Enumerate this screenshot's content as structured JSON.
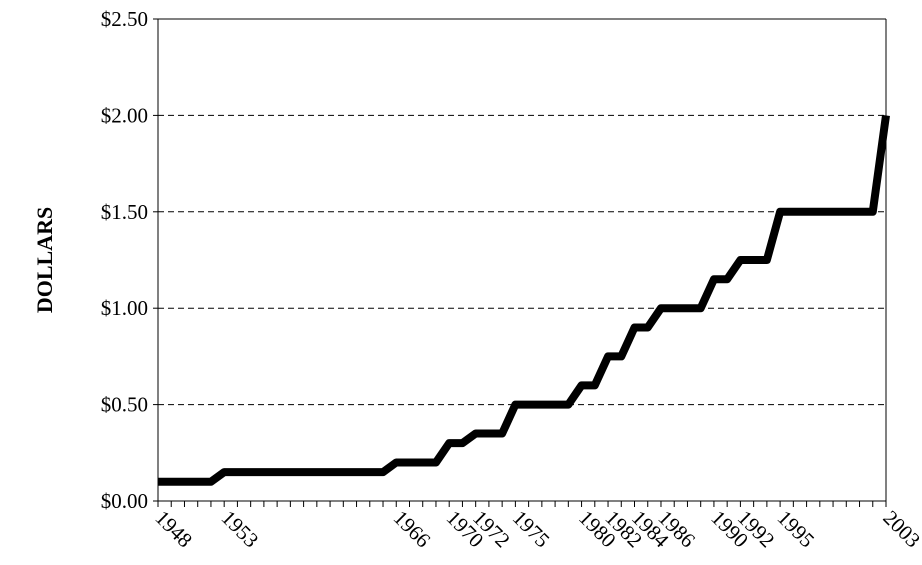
{
  "chart_data": {
    "type": "line",
    "y_label": "DOLLARS",
    "categories": [
      "1948",
      null,
      null,
      null,
      null,
      "1953",
      null,
      null,
      null,
      null,
      null,
      null,
      null,
      null,
      null,
      null,
      null,
      null,
      "1966",
      null,
      null,
      null,
      "1970",
      null,
      "1972",
      null,
      null,
      "1975",
      null,
      null,
      null,
      null,
      "1980",
      null,
      "1982",
      null,
      "1984",
      null,
      "1986",
      null,
      null,
      null,
      "1990",
      null,
      "1992",
      null,
      null,
      "1995",
      null,
      null,
      null,
      null,
      null,
      null,
      null,
      "2003"
    ],
    "values": [
      0.1,
      0.1,
      0.1,
      0.1,
      0.1,
      0.15,
      0.15,
      0.15,
      0.15,
      0.15,
      0.15,
      0.15,
      0.15,
      0.15,
      0.15,
      0.15,
      0.15,
      0.15,
      0.2,
      0.2,
      0.2,
      0.2,
      0.3,
      0.3,
      0.35,
      0.35,
      0.35,
      0.5,
      0.5,
      0.5,
      0.5,
      0.5,
      0.6,
      0.6,
      0.75,
      0.75,
      0.9,
      0.9,
      1.0,
      1.0,
      1.0,
      1.0,
      1.15,
      1.15,
      1.25,
      1.25,
      1.25,
      1.5,
      1.5,
      1.5,
      1.5,
      1.5,
      1.5,
      1.5,
      1.5,
      2.0
    ],
    "color": "#000000",
    "ylim": [
      0,
      2.5
    ],
    "yticks": [
      {
        "value": 0,
        "label": "$0.00"
      },
      {
        "value": 0.5,
        "label": "$0.50"
      },
      {
        "value": 1,
        "label": "$1.00"
      },
      {
        "value": 1.5,
        "label": "$1.50"
      },
      {
        "value": 2,
        "label": "$2.00"
      },
      {
        "value": 2.5,
        "label": "$2.50"
      }
    ],
    "grid": true
  }
}
